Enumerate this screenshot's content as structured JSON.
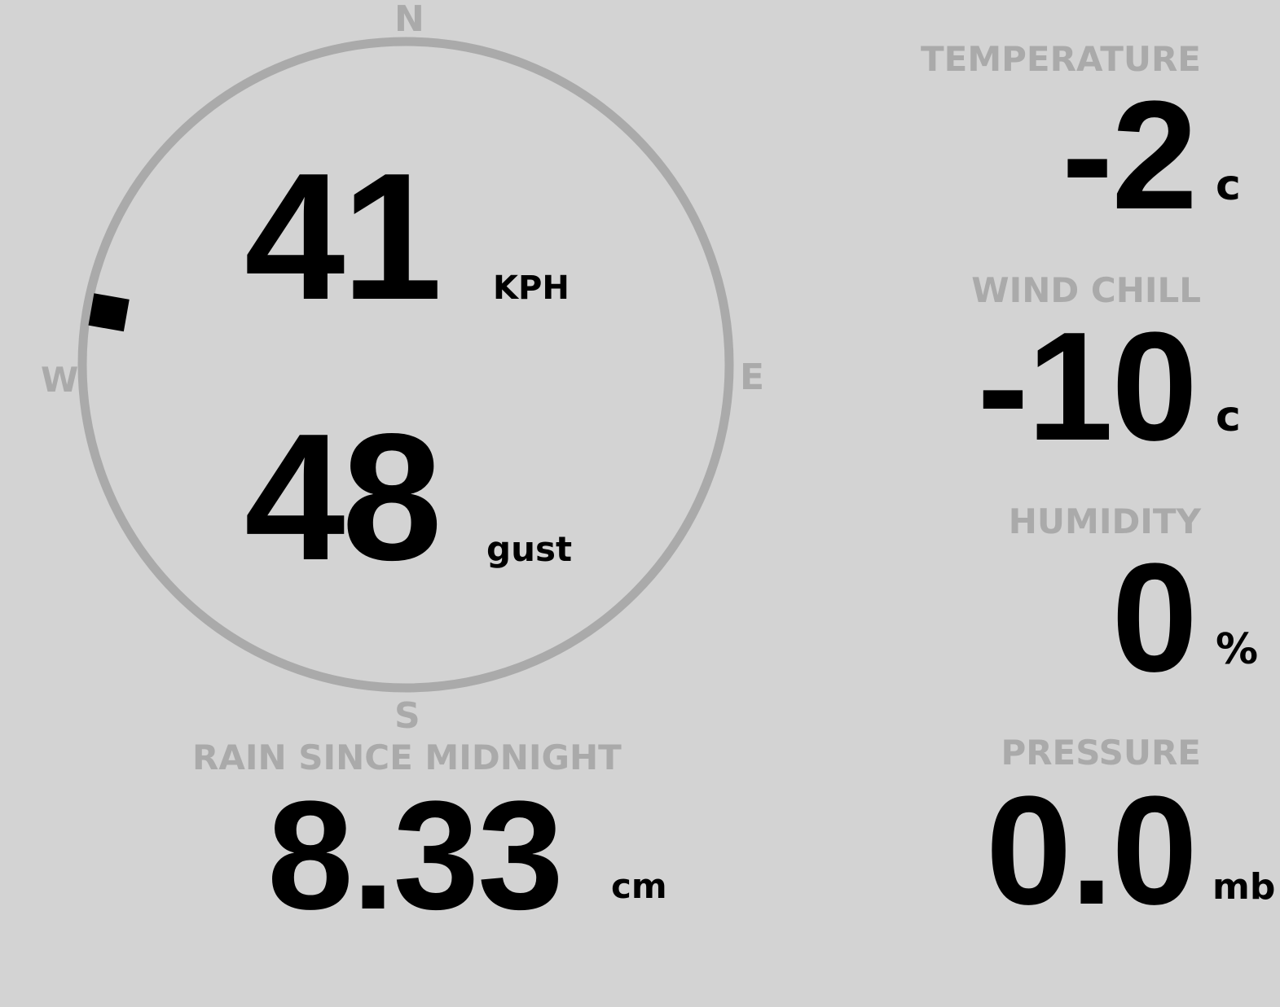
{
  "compass": {
    "north": "N",
    "south": "S",
    "east": "E",
    "west": "W",
    "wind_direction_deg": 280,
    "colors": {
      "ring": "#aaaaaa",
      "marker": "#000000"
    }
  },
  "wind": {
    "speed": "41",
    "speed_unit": "KPH",
    "gust": "48",
    "gust_unit": "gust"
  },
  "rain": {
    "label": "RAIN SINCE MIDNIGHT",
    "value": "8.33",
    "unit": "cm"
  },
  "temperature": {
    "label": "TEMPERATURE",
    "value": "-2",
    "unit": "c"
  },
  "wind_chill": {
    "label": "WIND CHILL",
    "value": "-10",
    "unit": "c"
  },
  "humidity": {
    "label": "HUMIDITY",
    "value": "0",
    "unit": "%"
  },
  "pressure": {
    "label": "PRESSURE",
    "value": "0.0",
    "unit": "mb"
  },
  "colors": {
    "background": "#d3d3d3",
    "label": "#aaaaaa",
    "value": "#000000"
  }
}
